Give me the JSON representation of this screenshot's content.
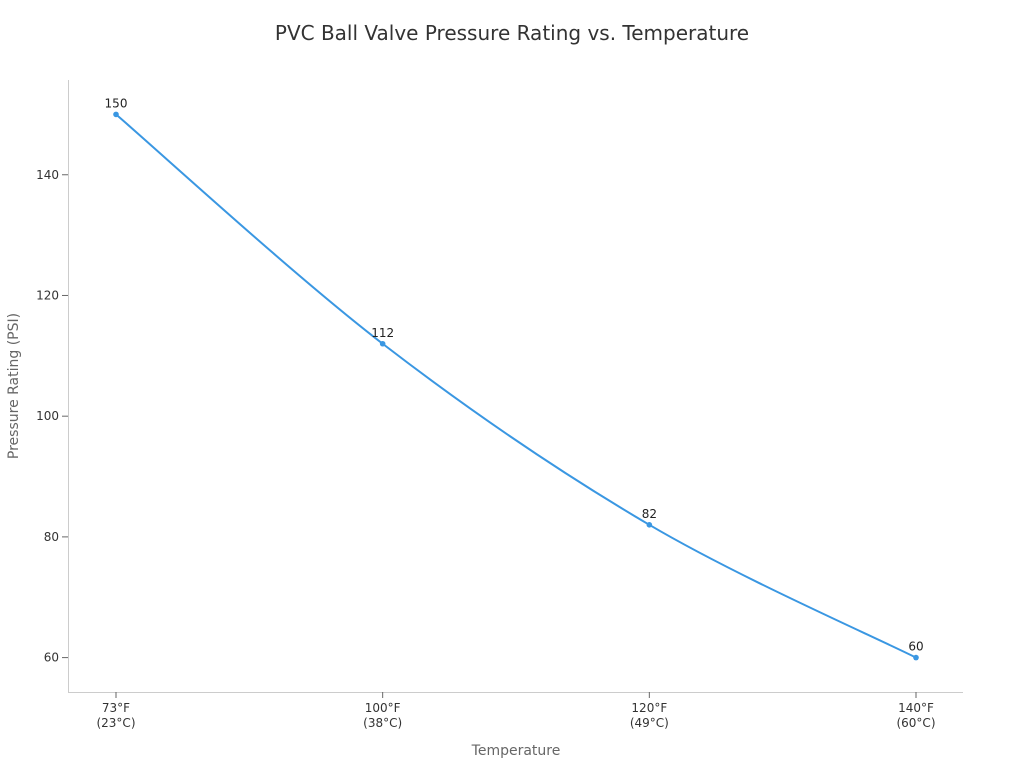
{
  "chart_data": {
    "type": "line",
    "title": "PVC Ball Valve Pressure Rating vs. Temperature",
    "xlabel": "Temperature",
    "ylabel": "Pressure Rating (PSI)",
    "categories": [
      [
        "73°F",
        "(23°C)"
      ],
      [
        "100°F",
        "(38°C)"
      ],
      [
        "120°F",
        "(49°C)"
      ],
      [
        "140°F",
        "(60°C)"
      ]
    ],
    "series": [
      {
        "values": [
          150,
          112,
          82,
          60
        ]
      }
    ],
    "yticks": [
      60,
      80,
      100,
      120,
      140
    ],
    "ylim": [
      54.3,
      155.7
    ],
    "grid": false,
    "legend": "none",
    "colors": {
      "line": "#3a97e2",
      "axis": "#cccccc"
    }
  }
}
